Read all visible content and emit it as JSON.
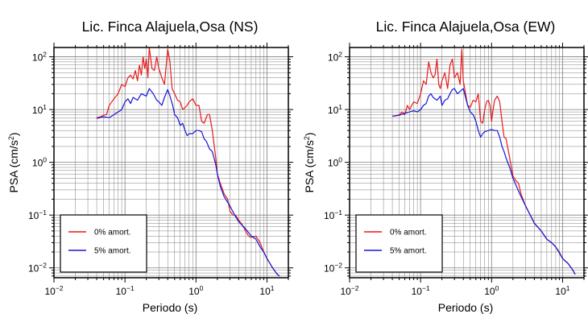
{
  "colors": {
    "series_0": "#e8191b",
    "series_5": "#1515d6",
    "grid": "#7f7f7f",
    "frame": "#000000"
  },
  "chart_data": [
    {
      "type": "line",
      "title": "Lic. Finca Alajuela,Osa (NS)",
      "xlabel": "Periodo (s)",
      "ylabel_main": "PSA (cm/s",
      "ylabel_sup": "2",
      "ylabel_tail": ")",
      "xscale": "log",
      "yscale": "log",
      "xlim": [
        0.01,
        20
      ],
      "ylim": [
        0.0065,
        150
      ],
      "grid": true,
      "legend_position": "bottom-left",
      "xticks": [
        {
          "base": "10",
          "exp": "−2",
          "v": 0.01
        },
        {
          "base": "10",
          "exp": "−1",
          "v": 0.1
        },
        {
          "base": "10",
          "exp": "0",
          "v": 1
        },
        {
          "base": "10",
          "exp": "1",
          "v": 10
        }
      ],
      "yticks": [
        {
          "base": "10",
          "exp": "−2",
          "v": 0.01
        },
        {
          "base": "10",
          "exp": "−1",
          "v": 0.1
        },
        {
          "base": "10",
          "exp": "0",
          "v": 1
        },
        {
          "base": "10",
          "exp": "1",
          "v": 10
        },
        {
          "base": "10",
          "exp": "2",
          "v": 100
        }
      ],
      "series": [
        {
          "name": "0% amort.",
          "color": "#e8191b",
          "points": [
            [
              0.04,
              7
            ],
            [
              0.045,
              7.3
            ],
            [
              0.05,
              7.8
            ],
            [
              0.055,
              8
            ],
            [
              0.06,
              12
            ],
            [
              0.07,
              16
            ],
            [
              0.08,
              20
            ],
            [
              0.09,
              30
            ],
            [
              0.1,
              27
            ],
            [
              0.11,
              40
            ],
            [
              0.12,
              45
            ],
            [
              0.13,
              38
            ],
            [
              0.14,
              55
            ],
            [
              0.15,
              35
            ],
            [
              0.16,
              70
            ],
            [
              0.17,
              45
            ],
            [
              0.18,
              100
            ],
            [
              0.19,
              60
            ],
            [
              0.2,
              90
            ],
            [
              0.21,
              40
            ],
            [
              0.22,
              150
            ],
            [
              0.24,
              60
            ],
            [
              0.26,
              55
            ],
            [
              0.28,
              100
            ],
            [
              0.3,
              60
            ],
            [
              0.33,
              40
            ],
            [
              0.36,
              30
            ],
            [
              0.4,
              140
            ],
            [
              0.43,
              80
            ],
            [
              0.46,
              25
            ],
            [
              0.5,
              20
            ],
            [
              0.55,
              15
            ],
            [
              0.6,
              14
            ],
            [
              0.65,
              10
            ],
            [
              0.7,
              11
            ],
            [
              0.75,
              12
            ],
            [
              0.8,
              14
            ],
            [
              0.9,
              16
            ],
            [
              1.0,
              12
            ],
            [
              1.1,
              12
            ],
            [
              1.2,
              6
            ],
            [
              1.3,
              5.5
            ],
            [
              1.45,
              8
            ],
            [
              1.55,
              8
            ],
            [
              1.7,
              4
            ],
            [
              1.9,
              1.2
            ],
            [
              2.0,
              0.6
            ],
            [
              2.2,
              0.4
            ],
            [
              2.5,
              0.25
            ],
            [
              2.8,
              0.2
            ],
            [
              3.0,
              0.12
            ],
            [
              3.3,
              0.1
            ],
            [
              3.6,
              0.1
            ],
            [
              4.0,
              0.08
            ],
            [
              4.5,
              0.065
            ],
            [
              5.0,
              0.05
            ],
            [
              5.5,
              0.04
            ],
            [
              6.0,
              0.038
            ],
            [
              7.0,
              0.04
            ],
            [
              8.0,
              0.03
            ],
            [
              9.0,
              0.02
            ],
            [
              10,
              0.015
            ],
            [
              12,
              0.01
            ],
            [
              14,
              0.0075
            ],
            [
              15,
              0.007
            ]
          ]
        },
        {
          "name": "5% amort.",
          "color": "#1515d6",
          "points": [
            [
              0.04,
              6.8
            ],
            [
              0.05,
              7.3
            ],
            [
              0.06,
              7
            ],
            [
              0.07,
              8
            ],
            [
              0.08,
              9
            ],
            [
              0.09,
              10
            ],
            [
              0.1,
              14
            ],
            [
              0.11,
              16
            ],
            [
              0.12,
              13
            ],
            [
              0.13,
              17
            ],
            [
              0.15,
              15
            ],
            [
              0.17,
              20
            ],
            [
              0.2,
              18
            ],
            [
              0.22,
              25
            ],
            [
              0.25,
              20
            ],
            [
              0.28,
              15
            ],
            [
              0.3,
              14
            ],
            [
              0.33,
              12
            ],
            [
              0.36,
              17
            ],
            [
              0.4,
              24
            ],
            [
              0.43,
              18
            ],
            [
              0.47,
              12
            ],
            [
              0.5,
              8
            ],
            [
              0.55,
              7
            ],
            [
              0.6,
              5
            ],
            [
              0.65,
              5.5
            ],
            [
              0.7,
              4
            ],
            [
              0.75,
              3.2
            ],
            [
              0.8,
              3.5
            ],
            [
              0.9,
              3.5
            ],
            [
              1.0,
              4
            ],
            [
              1.1,
              4
            ],
            [
              1.2,
              3.8
            ],
            [
              1.3,
              2.8
            ],
            [
              1.4,
              2.5
            ],
            [
              1.55,
              1.8
            ],
            [
              1.7,
              1.6
            ],
            [
              1.9,
              0.9
            ],
            [
              2.0,
              0.6
            ],
            [
              2.2,
              0.35
            ],
            [
              2.5,
              0.22
            ],
            [
              3.0,
              0.15
            ],
            [
              3.5,
              0.1
            ],
            [
              4.0,
              0.075
            ],
            [
              5.0,
              0.055
            ],
            [
              6.0,
              0.04
            ],
            [
              7.0,
              0.035
            ],
            [
              8.0,
              0.025
            ],
            [
              9.0,
              0.02
            ],
            [
              10,
              0.015
            ],
            [
              12,
              0.01
            ],
            [
              14,
              0.0075
            ],
            [
              15,
              0.007
            ]
          ]
        }
      ]
    },
    {
      "type": "line",
      "title": "Lic. Finca Alajuela,Osa (EW)",
      "xlabel": "Periodo (s)",
      "ylabel_main": "PSA (cm/s",
      "ylabel_sup": "2",
      "ylabel_tail": ")",
      "xscale": "log",
      "yscale": "log",
      "xlim": [
        0.01,
        20
      ],
      "ylim": [
        0.0065,
        150
      ],
      "grid": true,
      "legend_position": "bottom-left",
      "xticks": [
        {
          "base": "10",
          "exp": "−2",
          "v": 0.01
        },
        {
          "base": "10",
          "exp": "−1",
          "v": 0.1
        },
        {
          "base": "10",
          "exp": "0",
          "v": 1
        },
        {
          "base": "10",
          "exp": "1",
          "v": 10
        }
      ],
      "yticks": [
        {
          "base": "10",
          "exp": "−2",
          "v": 0.01
        },
        {
          "base": "10",
          "exp": "−1",
          "v": 0.1
        },
        {
          "base": "10",
          "exp": "0",
          "v": 1
        },
        {
          "base": "10",
          "exp": "1",
          "v": 10
        },
        {
          "base": "10",
          "exp": "2",
          "v": 100
        }
      ],
      "series": [
        {
          "name": "0% amort.",
          "color": "#e8191b",
          "points": [
            [
              0.04,
              7.5
            ],
            [
              0.045,
              7.6
            ],
            [
              0.05,
              8
            ],
            [
              0.055,
              9
            ],
            [
              0.06,
              8
            ],
            [
              0.065,
              12
            ],
            [
              0.07,
              10
            ],
            [
              0.08,
              14
            ],
            [
              0.09,
              13
            ],
            [
              0.1,
              20
            ],
            [
              0.11,
              35
            ],
            [
              0.12,
              30
            ],
            [
              0.13,
              80
            ],
            [
              0.14,
              50
            ],
            [
              0.15,
              40
            ],
            [
              0.16,
              45
            ],
            [
              0.17,
              90
            ],
            [
              0.18,
              30
            ],
            [
              0.19,
              25
            ],
            [
              0.2,
              35
            ],
            [
              0.22,
              50
            ],
            [
              0.24,
              25
            ],
            [
              0.26,
              70
            ],
            [
              0.28,
              90
            ],
            [
              0.3,
              40
            ],
            [
              0.33,
              50
            ],
            [
              0.36,
              30
            ],
            [
              0.38,
              140
            ],
            [
              0.4,
              35
            ],
            [
              0.43,
              20
            ],
            [
              0.46,
              12
            ],
            [
              0.5,
              11
            ],
            [
              0.55,
              15
            ],
            [
              0.6,
              14
            ],
            [
              0.65,
              20
            ],
            [
              0.7,
              6
            ],
            [
              0.75,
              5.5
            ],
            [
              0.8,
              10
            ],
            [
              0.85,
              14
            ],
            [
              0.9,
              15
            ],
            [
              0.95,
              12
            ],
            [
              1.0,
              6
            ],
            [
              1.05,
              10
            ],
            [
              1.1,
              15
            ],
            [
              1.2,
              18
            ],
            [
              1.3,
              14
            ],
            [
              1.4,
              6
            ],
            [
              1.5,
              3
            ],
            [
              1.6,
              2.8
            ],
            [
              1.8,
              1.2
            ],
            [
              2.0,
              0.55
            ],
            [
              2.2,
              0.45
            ],
            [
              2.4,
              0.4
            ],
            [
              2.6,
              0.25
            ],
            [
              3.0,
              0.15
            ],
            [
              3.5,
              0.1
            ],
            [
              4.0,
              0.07
            ],
            [
              5.0,
              0.05
            ],
            [
              6.0,
              0.035
            ],
            [
              7.0,
              0.03
            ],
            [
              8.0,
              0.025
            ],
            [
              9.0,
              0.02
            ],
            [
              10,
              0.015
            ],
            [
              12,
              0.012
            ],
            [
              14,
              0.009
            ],
            [
              15,
              0.0075
            ]
          ]
        },
        {
          "name": "5% amort.",
          "color": "#1515d6",
          "points": [
            [
              0.04,
              7.5
            ],
            [
              0.05,
              7.8
            ],
            [
              0.06,
              8.5
            ],
            [
              0.07,
              9
            ],
            [
              0.08,
              9.5
            ],
            [
              0.09,
              9
            ],
            [
              0.1,
              10
            ],
            [
              0.11,
              12
            ],
            [
              0.12,
              13
            ],
            [
              0.13,
              18
            ],
            [
              0.14,
              20
            ],
            [
              0.15,
              17
            ],
            [
              0.17,
              15
            ],
            [
              0.19,
              18
            ],
            [
              0.2,
              12
            ],
            [
              0.22,
              15
            ],
            [
              0.24,
              16
            ],
            [
              0.26,
              20
            ],
            [
              0.28,
              24
            ],
            [
              0.3,
              25
            ],
            [
              0.33,
              20
            ],
            [
              0.36,
              22
            ],
            [
              0.4,
              25
            ],
            [
              0.43,
              17
            ],
            [
              0.46,
              12
            ],
            [
              0.5,
              9
            ],
            [
              0.55,
              8
            ],
            [
              0.6,
              6
            ],
            [
              0.65,
              4
            ],
            [
              0.7,
              3
            ],
            [
              0.75,
              3.5
            ],
            [
              0.8,
              3.8
            ],
            [
              0.9,
              4
            ],
            [
              1.0,
              4.2
            ],
            [
              1.1,
              4
            ],
            [
              1.2,
              4
            ],
            [
              1.3,
              3
            ],
            [
              1.4,
              2
            ],
            [
              1.5,
              1.6
            ],
            [
              1.6,
              1.2
            ],
            [
              1.8,
              0.8
            ],
            [
              2.0,
              0.5
            ],
            [
              2.5,
              0.25
            ],
            [
              3.0,
              0.15
            ],
            [
              3.5,
              0.1
            ],
            [
              4.0,
              0.07
            ],
            [
              5.0,
              0.05
            ],
            [
              6.0,
              0.035
            ],
            [
              7.0,
              0.03
            ],
            [
              8.0,
              0.025
            ],
            [
              10,
              0.015
            ],
            [
              12,
              0.012
            ],
            [
              14,
              0.009
            ],
            [
              15,
              0.0075
            ]
          ]
        }
      ]
    }
  ]
}
